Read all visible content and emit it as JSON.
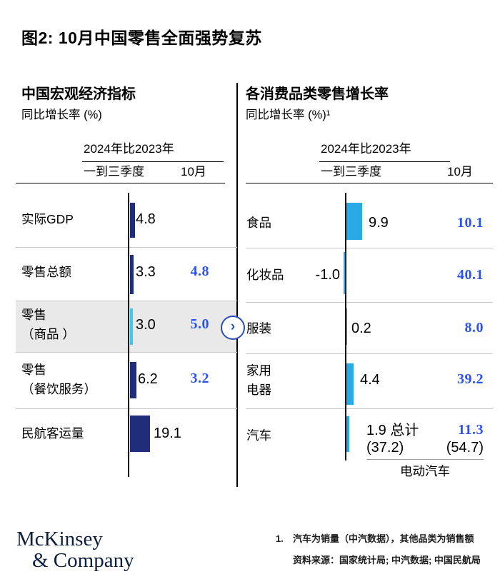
{
  "title": "图2: 10月中国零售全面强势复苏",
  "accent_colors": {
    "navy_bar": "#1F2D7B",
    "cyan_bar": "#29A9E6",
    "cyan_bar_light": "#3EC8F2",
    "blue_value": "#2A52EE",
    "circle_arrow": "#2a4db8"
  },
  "left_panel": {
    "heading": "中国宏观经济指标",
    "subheading": "同比增长率 (%)",
    "col_group": "2024年比2023年",
    "col_q13": "一到三季度",
    "col_oct": "10月",
    "rows": [
      {
        "label": "实际GDP",
        "label2": "",
        "q13": "4.8",
        "oct": "",
        "bar": 4.8
      },
      {
        "label": "零售总额",
        "label2": "",
        "q13": "3.3",
        "oct": "4.8",
        "bar": 3.3
      },
      {
        "label": "零售",
        "label2": "（商品 ）",
        "q13": "3.0",
        "oct": "5.0",
        "bar": 3.0
      },
      {
        "label": "零售",
        "label2": "（餐饮服务）",
        "q13": "6.2",
        "oct": "3.2",
        "bar": 6.2
      },
      {
        "label": "民航客运量",
        "label2": "",
        "q13": "19.1",
        "oct": "",
        "bar": 19.1
      }
    ]
  },
  "right_panel": {
    "heading": "各消费品类零售增长率",
    "subheading": "同比增长率 (%)¹",
    "col_group": "2024年比2023年",
    "col_q13": "一到三季度",
    "col_oct": "10月",
    "rows": [
      {
        "label": "食品",
        "label2": "",
        "q13": "9.9",
        "oct": "10.1",
        "bar": 9.9
      },
      {
        "label": "化妆品",
        "label2": "",
        "q13": "-1.0",
        "oct": "40.1",
        "bar": -1.0
      },
      {
        "label": "服装",
        "label2": "",
        "q13": "0.2",
        "oct": "8.0",
        "bar": 0.2
      },
      {
        "label": "家用",
        "label2": "电器",
        "q13": "4.4",
        "oct": "39.2",
        "bar": 4.4
      },
      {
        "label": "汽车",
        "label2": "",
        "q13": "1.9 总计",
        "oct": "11.3",
        "bar": 1.9,
        "sub_q13": "(37.2)",
        "sub_oct": "(54.7)",
        "sub_label": "电动汽车"
      }
    ]
  },
  "connector": {
    "arrow": "›"
  },
  "footer": {
    "logo_line1": "McKinsey",
    "logo_line2": "& Company",
    "footnote_marker": "1.",
    "footnote_line1": "汽车为销量（中汽数据），其他品类为销售额",
    "footnote_line2": "资料来源：国家统计局; 中汽数据; 中国民航局"
  },
  "chart_data": [
    {
      "type": "bar",
      "title": "中国宏观经济指标",
      "subtitle": "同比增长率 (%)",
      "categories": [
        "实际GDP",
        "零售总额",
        "零售（商品）",
        "零售（餐饮服务）",
        "民航客运量"
      ],
      "series": [
        {
          "name": "2024年比2023年 一到三季度",
          "values": [
            4.8,
            3.3,
            3.0,
            6.2,
            19.1
          ]
        },
        {
          "name": "2024年比2023年 10月",
          "values": [
            null,
            4.8,
            5.0,
            3.2,
            null
          ]
        }
      ],
      "xlabel": "",
      "ylabel": "同比增长率 (%)",
      "legend_position": "column-header",
      "grid": false,
      "highlight_category": "零售（商品）"
    },
    {
      "type": "bar",
      "title": "各消费品类零售增长率",
      "subtitle": "同比增长率 (%)1",
      "categories": [
        "食品",
        "化妆品",
        "服装",
        "家用电器",
        "汽车"
      ],
      "series": [
        {
          "name": "2024年比2023年 一到三季度",
          "values": [
            9.9,
            -1.0,
            0.2,
            4.4,
            1.9
          ]
        },
        {
          "name": "2024年比2023年 10月",
          "values": [
            10.1,
            40.1,
            8.0,
            39.2,
            11.3
          ]
        }
      ],
      "annotations": [
        {
          "category": "汽车",
          "label": "总计",
          "note": "电动汽车",
          "一到三季度": 37.2,
          "10月": 54.7
        }
      ],
      "xlabel": "",
      "ylabel": "同比增长率 (%)",
      "legend_position": "column-header",
      "grid": false
    }
  ]
}
